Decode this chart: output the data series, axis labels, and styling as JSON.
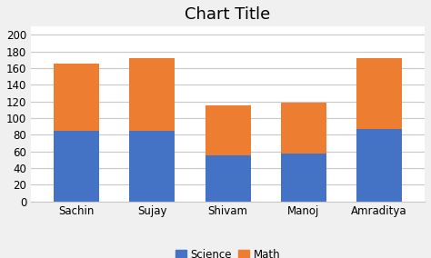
{
  "categories": [
    "Sachin",
    "Sujay",
    "Shivam",
    "Manoj",
    "Amraditya"
  ],
  "science": [
    85,
    85,
    55,
    57,
    87
  ],
  "math": [
    80,
    87,
    60,
    62,
    85
  ],
  "science_color": "#4472C4",
  "math_color": "#ED7D31",
  "title": "Chart Title",
  "title_fontsize": 13,
  "ylim": [
    0,
    210
  ],
  "yticks": [
    0,
    20,
    40,
    60,
    80,
    100,
    120,
    140,
    160,
    180,
    200
  ],
  "legend_labels": [
    "Science",
    "Math"
  ],
  "background_color": "#f0f0f0",
  "plot_bg_color": "#ffffff",
  "grid_color": "#c8c8c8"
}
